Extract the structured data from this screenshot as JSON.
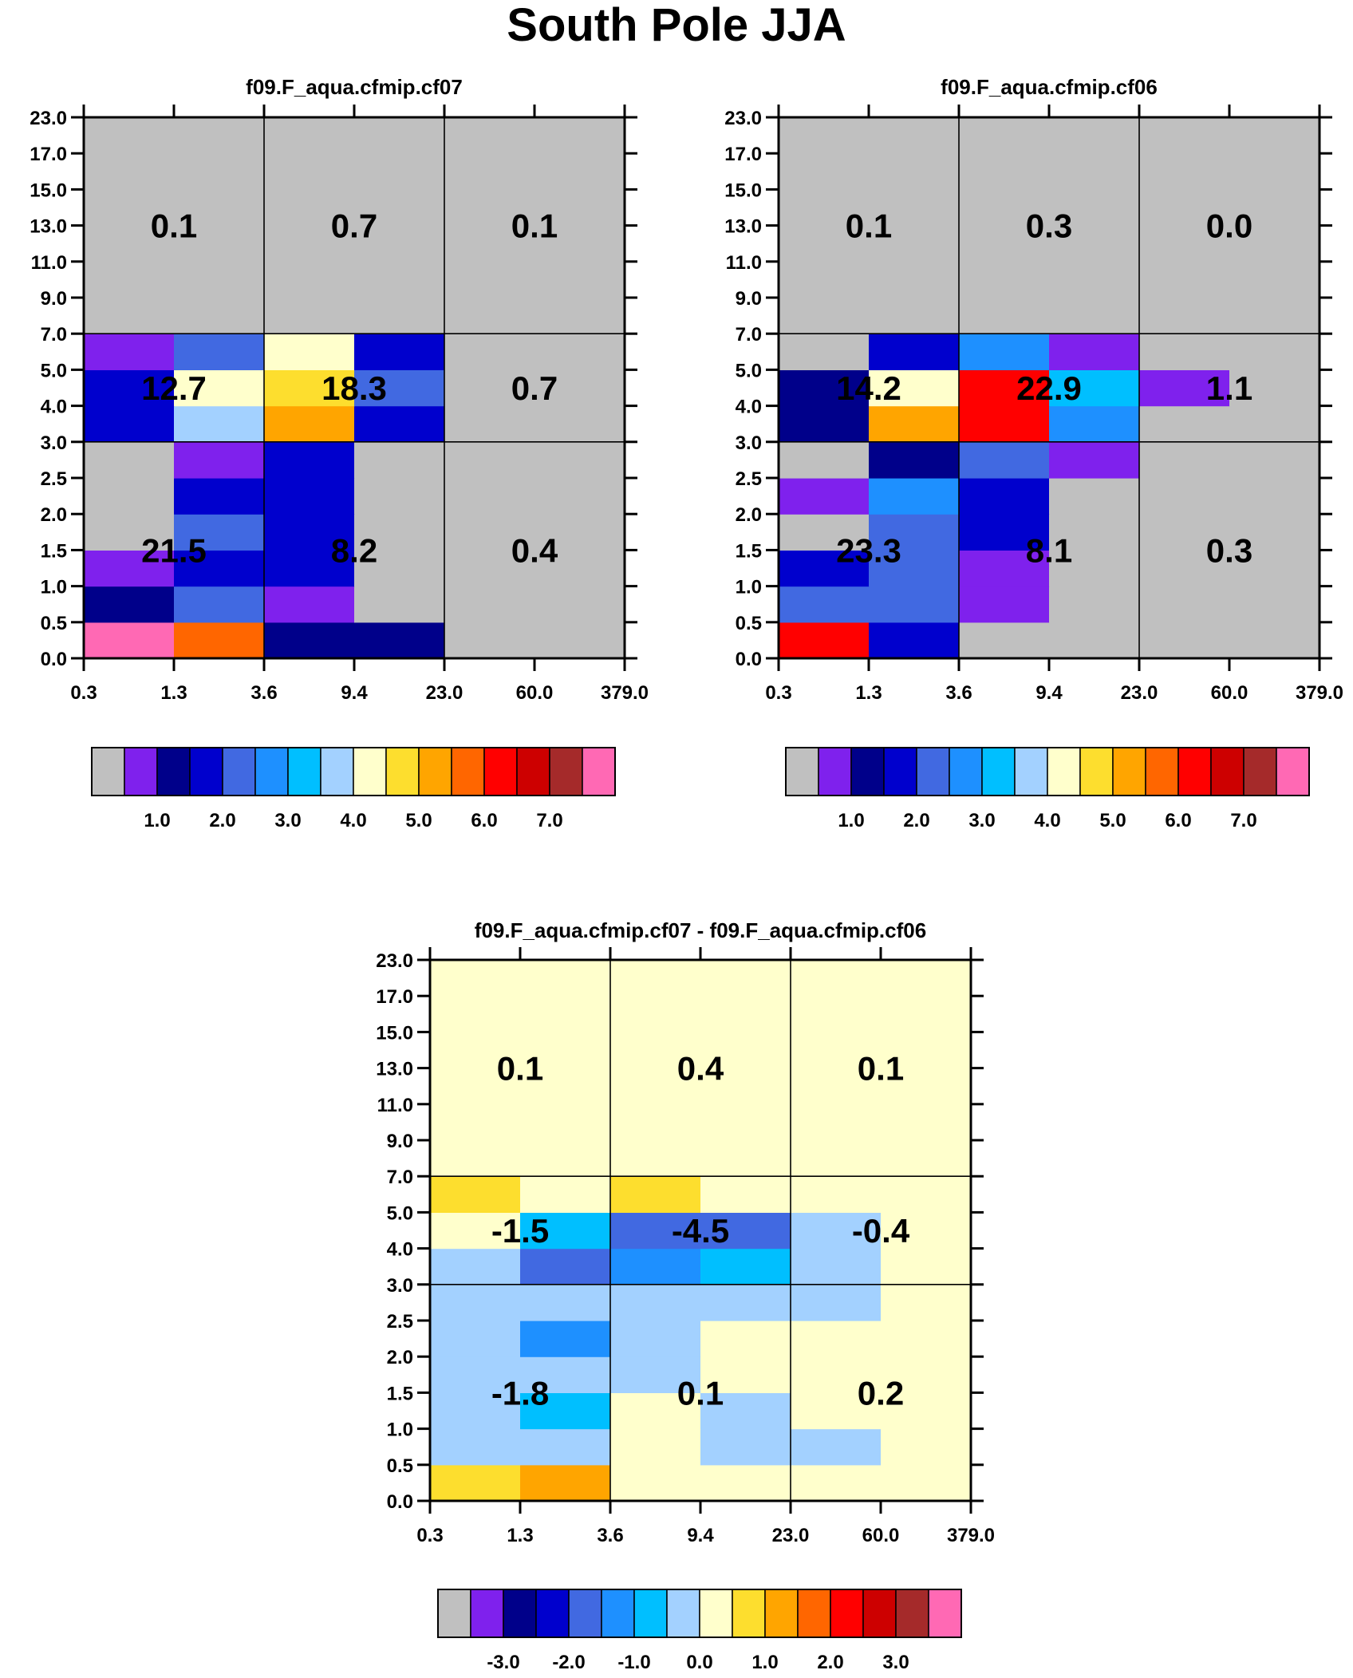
{
  "title": "South Pole JJA",
  "chart_data": [
    {
      "type": "heatmap",
      "title": "f09.F_aqua.cfmip.cf07",
      "x_ticks": [
        "0.3",
        "1.3",
        "3.6",
        "9.4",
        "23.0",
        "60.0",
        "379.0"
      ],
      "y_ticks": [
        "0.0",
        "0.5",
        "1.0",
        "1.5",
        "2.0",
        "2.5",
        "3.0",
        "4.0",
        "5.0",
        "7.0",
        "9.0",
        "11.0",
        "13.0",
        "15.0",
        "17.0",
        "23.0"
      ],
      "palette": "abs",
      "cells": [
        [
          15,
          11,
          2,
          2,
          0,
          0
        ],
        [
          2,
          4,
          1,
          0,
          0,
          0
        ],
        [
          1,
          3,
          3,
          0,
          0,
          0
        ],
        [
          0,
          4,
          3,
          0,
          0,
          0
        ],
        [
          0,
          3,
          3,
          0,
          0,
          0
        ],
        [
          0,
          1,
          3,
          0,
          0,
          0
        ],
        [
          3,
          7,
          10,
          3,
          0,
          0
        ],
        [
          3,
          8,
          9,
          4,
          0,
          0
        ],
        [
          1,
          4,
          8,
          3,
          0,
          0
        ],
        [
          0,
          0,
          0,
          0,
          0,
          0
        ],
        [
          0,
          0,
          0,
          0,
          0,
          0
        ],
        [
          0,
          0,
          0,
          0,
          0,
          0
        ],
        [
          0,
          0,
          0,
          0,
          0,
          0
        ],
        [
          0,
          0,
          0,
          0,
          0,
          0
        ],
        [
          0,
          0,
          0,
          0,
          0,
          0
        ]
      ],
      "box_labels": [
        {
          "text": "0.1",
          "x": 0,
          "y": 2
        },
        {
          "text": "0.7",
          "x": 1,
          "y": 2
        },
        {
          "text": "0.1",
          "x": 2,
          "y": 2
        },
        {
          "text": "12.7",
          "x": 0,
          "y": 1
        },
        {
          "text": "18.3",
          "x": 1,
          "y": 1
        },
        {
          "text": "0.7",
          "x": 2,
          "y": 1
        },
        {
          "text": "21.5",
          "x": 0,
          "y": 0
        },
        {
          "text": "8.2",
          "x": 1,
          "y": 0
        },
        {
          "text": "0.4",
          "x": 2,
          "y": 0
        }
      ],
      "colorbar_labels": [
        "1.0",
        "2.0",
        "3.0",
        "4.0",
        "5.0",
        "6.0",
        "7.0"
      ]
    },
    {
      "type": "heatmap",
      "title": "f09.F_aqua.cfmip.cf06",
      "x_ticks": [
        "0.3",
        "1.3",
        "3.6",
        "9.4",
        "23.0",
        "60.0",
        "379.0"
      ],
      "y_ticks": [
        "0.0",
        "0.5",
        "1.0",
        "1.5",
        "2.0",
        "2.5",
        "3.0",
        "4.0",
        "5.0",
        "7.0",
        "9.0",
        "11.0",
        "13.0",
        "15.0",
        "17.0",
        "23.0"
      ],
      "palette": "abs",
      "cells": [
        [
          12,
          3,
          0,
          0,
          0,
          0
        ],
        [
          4,
          4,
          1,
          0,
          0,
          0
        ],
        [
          3,
          4,
          1,
          0,
          0,
          0
        ],
        [
          0,
          4,
          3,
          0,
          0,
          0
        ],
        [
          1,
          5,
          3,
          0,
          0,
          0
        ],
        [
          0,
          2,
          4,
          1,
          0,
          0
        ],
        [
          2,
          10,
          12,
          5,
          0,
          0
        ],
        [
          2,
          8,
          12,
          6,
          1,
          0
        ],
        [
          0,
          3,
          5,
          1,
          0,
          0
        ],
        [
          0,
          0,
          0,
          0,
          0,
          0
        ],
        [
          0,
          0,
          0,
          0,
          0,
          0
        ],
        [
          0,
          0,
          0,
          0,
          0,
          0
        ],
        [
          0,
          0,
          0,
          0,
          0,
          0
        ],
        [
          0,
          0,
          0,
          0,
          0,
          0
        ],
        [
          0,
          0,
          0,
          0,
          0,
          0
        ]
      ],
      "box_labels": [
        {
          "text": "0.1",
          "x": 0,
          "y": 2
        },
        {
          "text": "0.3",
          "x": 1,
          "y": 2
        },
        {
          "text": "0.0",
          "x": 2,
          "y": 2
        },
        {
          "text": "14.2",
          "x": 0,
          "y": 1
        },
        {
          "text": "22.9",
          "x": 1,
          "y": 1
        },
        {
          "text": "1.1",
          "x": 2,
          "y": 1
        },
        {
          "text": "23.3",
          "x": 0,
          "y": 0
        },
        {
          "text": "8.1",
          "x": 1,
          "y": 0
        },
        {
          "text": "0.3",
          "x": 2,
          "y": 0
        }
      ],
      "colorbar_labels": [
        "1.0",
        "2.0",
        "3.0",
        "4.0",
        "5.0",
        "6.0",
        "7.0"
      ]
    },
    {
      "type": "heatmap",
      "title": "f09.F_aqua.cfmip.cf07 - f09.F_aqua.cfmip.cf06",
      "x_ticks": [
        "0.3",
        "1.3",
        "3.6",
        "9.4",
        "23.0",
        "60.0",
        "379.0"
      ],
      "y_ticks": [
        "0.0",
        "0.5",
        "1.0",
        "1.5",
        "2.0",
        "2.5",
        "3.0",
        "4.0",
        "5.0",
        "7.0",
        "9.0",
        "11.0",
        "13.0",
        "15.0",
        "17.0",
        "23.0"
      ],
      "palette": "diff",
      "cells": [
        [
          9,
          10,
          8,
          8,
          8,
          8
        ],
        [
          7,
          7,
          8,
          7,
          7,
          8
        ],
        [
          7,
          6,
          8,
          7,
          8,
          8
        ],
        [
          7,
          7,
          7,
          8,
          8,
          8
        ],
        [
          7,
          5,
          7,
          8,
          8,
          8
        ],
        [
          7,
          7,
          7,
          7,
          7,
          8
        ],
        [
          7,
          4,
          5,
          6,
          7,
          8
        ],
        [
          8,
          6,
          4,
          4,
          7,
          8
        ],
        [
          9,
          8,
          9,
          8,
          8,
          8
        ],
        [
          8,
          8,
          8,
          8,
          8,
          8
        ],
        [
          8,
          8,
          8,
          8,
          8,
          8
        ],
        [
          8,
          8,
          8,
          8,
          8,
          8
        ],
        [
          8,
          8,
          8,
          8,
          8,
          8
        ],
        [
          8,
          8,
          8,
          8,
          8,
          8
        ],
        [
          8,
          8,
          8,
          8,
          8,
          8
        ]
      ],
      "box_labels": [
        {
          "text": "0.1",
          "x": 0,
          "y": 2
        },
        {
          "text": "0.4",
          "x": 1,
          "y": 2
        },
        {
          "text": "0.1",
          "x": 2,
          "y": 2
        },
        {
          "text": "-1.5",
          "x": 0,
          "y": 1
        },
        {
          "text": "-4.5",
          "x": 1,
          "y": 1
        },
        {
          "text": "-0.4",
          "x": 2,
          "y": 1
        },
        {
          "text": "-1.8",
          "x": 0,
          "y": 0
        },
        {
          "text": "0.1",
          "x": 1,
          "y": 0
        },
        {
          "text": "0.2",
          "x": 2,
          "y": 0
        }
      ],
      "colorbar_labels": [
        "-3.0",
        "-2.0",
        "-1.0",
        "0.0",
        "1.0",
        "2.0",
        "3.0"
      ]
    }
  ],
  "colors": {
    "palette": [
      "#c0c0c0",
      "#7f21ed",
      "#00008a",
      "#0000cd",
      "#4169e1",
      "#1e90ff",
      "#00bfff",
      "#a3d1ff",
      "#ffffcc",
      "#fdde2e",
      "#ffa500",
      "#ff6600",
      "#ff0000",
      "#cd0000",
      "#a52a2a",
      "#ff69b4"
    ],
    "line": "#000000"
  }
}
